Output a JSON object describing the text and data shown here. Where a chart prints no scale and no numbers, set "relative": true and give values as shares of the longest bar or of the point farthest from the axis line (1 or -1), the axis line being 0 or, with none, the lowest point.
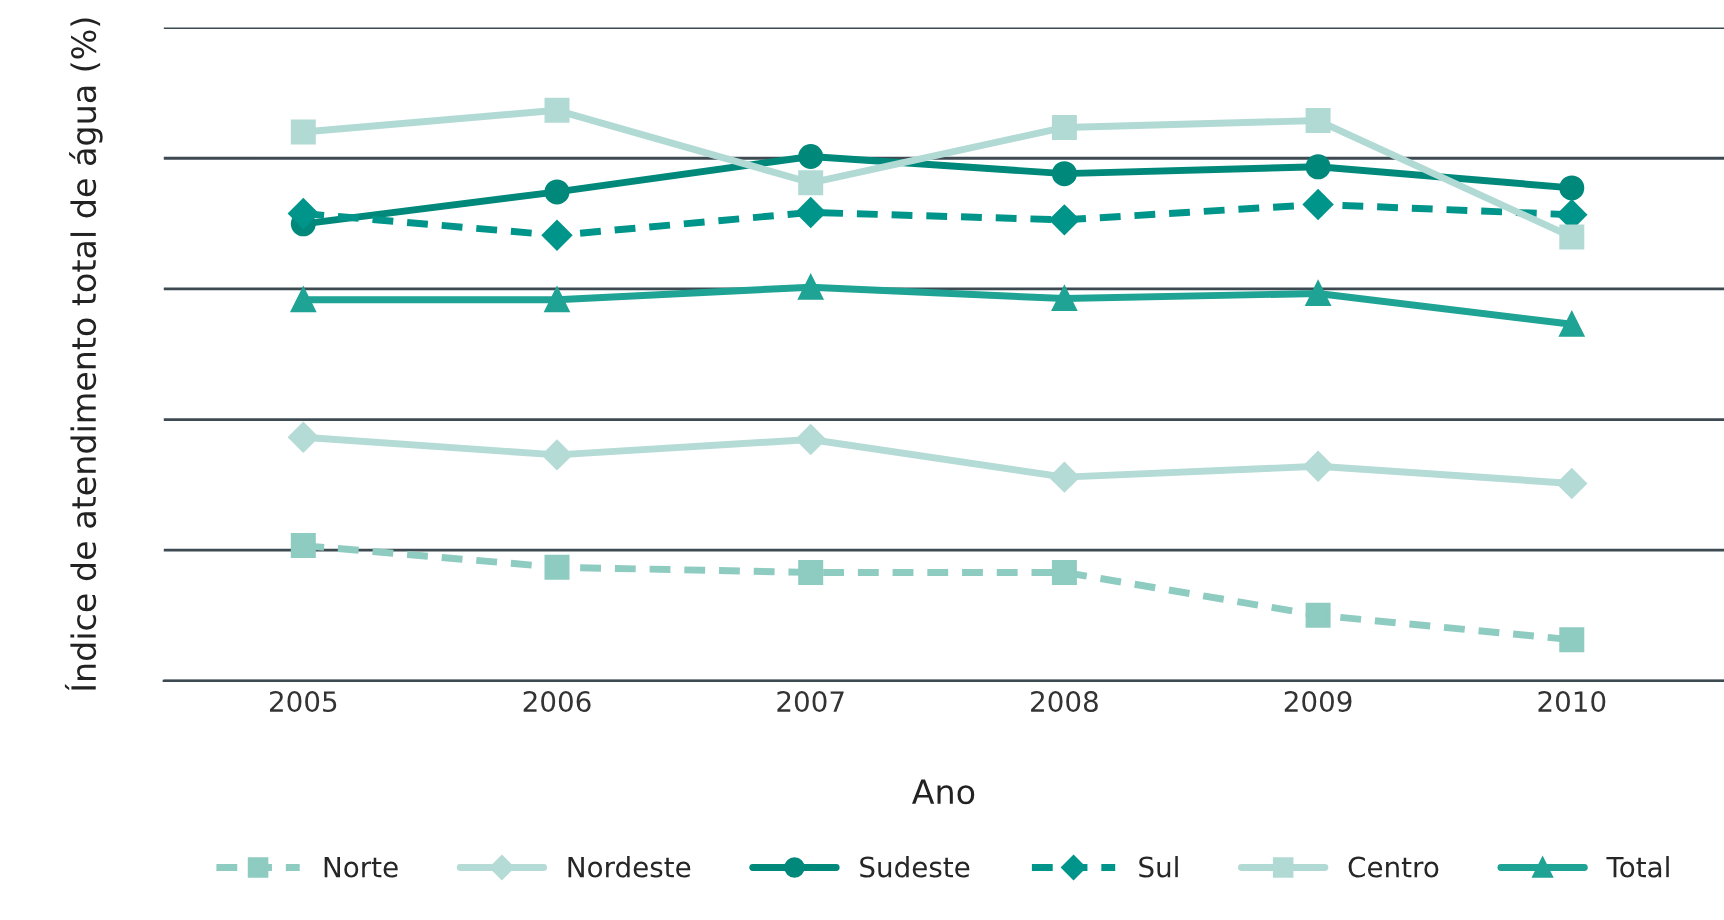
{
  "chart_data": {
    "type": "line",
    "relative": true,
    "xlabel": "Ano",
    "ylabel": "Índice de atendimento total de água (%)",
    "categories": [
      "2005",
      "2006",
      "2007",
      "2008",
      "2009",
      "2010"
    ],
    "series": [
      {
        "name": "Norte",
        "color": "#8ecbc0",
        "marker": "square",
        "line_style": "dashed",
        "values": [
          0.237,
          0.199,
          0.19,
          0.19,
          0.115,
          0.072
        ]
      },
      {
        "name": "Nordeste",
        "color": "#b5dbd6",
        "marker": "diamond",
        "line_style": "solid",
        "values": [
          0.427,
          0.396,
          0.423,
          0.357,
          0.376,
          0.346
        ]
      },
      {
        "name": "Sudeste",
        "color": "#00897b",
        "marker": "circle",
        "line_style": "solid",
        "values": [
          0.801,
          0.857,
          0.919,
          0.889,
          0.901,
          0.864
        ]
      },
      {
        "name": "Sul",
        "color": "#00958a",
        "marker": "diamond",
        "line_style": "dashed",
        "values": [
          0.819,
          0.781,
          0.821,
          0.808,
          0.835,
          0.817
        ]
      },
      {
        "name": "Centro",
        "color": "#b2dad5",
        "marker": "square",
        "line_style": "solid",
        "values": [
          0.962,
          1.0,
          0.873,
          0.97,
          0.982,
          0.778
        ]
      },
      {
        "name": "Total",
        "color": "#1fa394",
        "marker": "triangle",
        "line_style": "solid",
        "values": [
          0.668,
          0.668,
          0.69,
          0.67,
          0.679,
          0.625
        ]
      }
    ],
    "grid": "y",
    "legend": "bottom",
    "tick_labels": "x"
  }
}
